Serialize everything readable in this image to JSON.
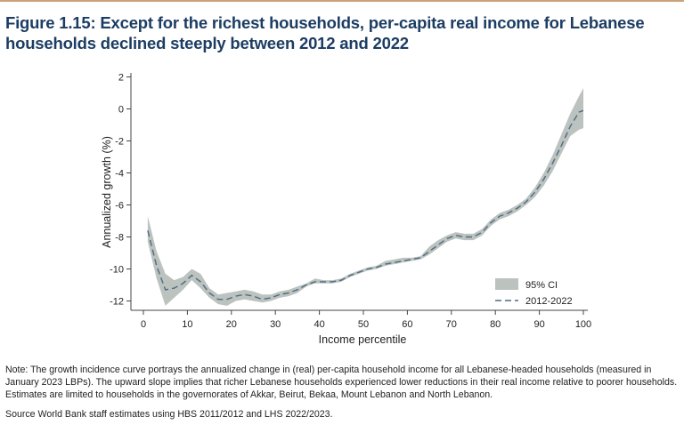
{
  "figure": {
    "title": "Figure 1.15: Except for the richest households, per-capita real income for Lebanese households declined steeply between 2012 and 2022",
    "note": "Note: The growth incidence curve portrays the annualized change in (real) per-capita household income for all Lebanese-headed households (measured in January 2023 LBPs). The upward slope implies that richer Lebanese households experienced lower reductions in their real income relative to poorer households. Estimates are limited to households in the governorates of Akkar, Beirut, Bekaa, Mount Lebanon and North Lebanon.",
    "source": "Source World Bank staff estimates using HBS 2011/2012 and LHS 2022/2023."
  },
  "colors": {
    "title": "#1c3d63",
    "band": "#bcc3bf",
    "line": "#4d6a86",
    "rule": "#c9a27a"
  },
  "chart_data": {
    "type": "line",
    "xlabel": "Income percentile",
    "ylabel": "Annualized growth (%)",
    "xlim": [
      0,
      100
    ],
    "ylim": [
      -12.7,
      2.3
    ],
    "xticks": [
      0,
      10,
      20,
      30,
      40,
      50,
      60,
      70,
      80,
      90,
      100
    ],
    "yticks": [
      2,
      0,
      -2,
      -4,
      -6,
      -8,
      -10,
      -12
    ],
    "grid": false,
    "legend_position": "bottom-right",
    "legend": [
      {
        "label": "95% CI",
        "kind": "band"
      },
      {
        "label": "2012-2022",
        "kind": "dashed-line"
      }
    ],
    "x": [
      1,
      3,
      5,
      7,
      9,
      11,
      13,
      15,
      17,
      19,
      21,
      23,
      25,
      27,
      29,
      31,
      33,
      35,
      37,
      39,
      41,
      43,
      45,
      47,
      49,
      51,
      53,
      55,
      57,
      59,
      61,
      63,
      65,
      67,
      69,
      71,
      73,
      75,
      77,
      79,
      81,
      83,
      85,
      87,
      89,
      91,
      93,
      95,
      97,
      99,
      100
    ],
    "series": [
      {
        "name": "2012-2022",
        "values": [
          -7.6,
          -9.8,
          -11.3,
          -11.2,
          -10.9,
          -10.4,
          -10.8,
          -11.5,
          -11.9,
          -11.9,
          -11.7,
          -11.6,
          -11.7,
          -11.9,
          -11.8,
          -11.6,
          -11.5,
          -11.3,
          -11.0,
          -10.8,
          -10.8,
          -10.8,
          -10.7,
          -10.4,
          -10.2,
          -10.0,
          -9.9,
          -9.7,
          -9.6,
          -9.5,
          -9.4,
          -9.3,
          -8.9,
          -8.5,
          -8.1,
          -7.9,
          -8.0,
          -8.0,
          -7.7,
          -7.1,
          -6.7,
          -6.5,
          -6.2,
          -5.8,
          -5.2,
          -4.4,
          -3.4,
          -2.3,
          -1.1,
          -0.2,
          -0.1
        ]
      }
    ],
    "ci_lower": [
      -8.3,
      -10.6,
      -12.3,
      -11.8,
      -11.3,
      -10.7,
      -11.2,
      -11.8,
      -12.2,
      -12.3,
      -12.0,
      -11.9,
      -12.0,
      -12.1,
      -12.0,
      -11.8,
      -11.7,
      -11.5,
      -11.1,
      -10.9,
      -10.9,
      -10.9,
      -10.8,
      -10.5,
      -10.3,
      -10.1,
      -10.0,
      -9.8,
      -9.7,
      -9.6,
      -9.5,
      -9.4,
      -9.1,
      -8.7,
      -8.3,
      -8.1,
      -8.2,
      -8.2,
      -7.9,
      -7.3,
      -6.9,
      -6.7,
      -6.4,
      -6.0,
      -5.5,
      -4.8,
      -3.9,
      -2.8,
      -1.7,
      -1.3,
      -1.2
    ],
    "ci_upper": [
      -6.7,
      -8.9,
      -10.3,
      -10.7,
      -10.5,
      -10.0,
      -10.3,
      -11.2,
      -11.6,
      -11.5,
      -11.4,
      -11.3,
      -11.4,
      -11.6,
      -11.6,
      -11.4,
      -11.3,
      -11.1,
      -10.9,
      -10.6,
      -10.7,
      -10.7,
      -10.6,
      -10.3,
      -10.1,
      -9.9,
      -9.8,
      -9.5,
      -9.4,
      -9.3,
      -9.3,
      -9.2,
      -8.6,
      -8.2,
      -7.9,
      -7.7,
      -7.8,
      -7.8,
      -7.5,
      -6.9,
      -6.5,
      -6.3,
      -6.0,
      -5.6,
      -4.9,
      -4.0,
      -2.9,
      -1.6,
      -0.3,
      0.8,
      1.3
    ]
  }
}
